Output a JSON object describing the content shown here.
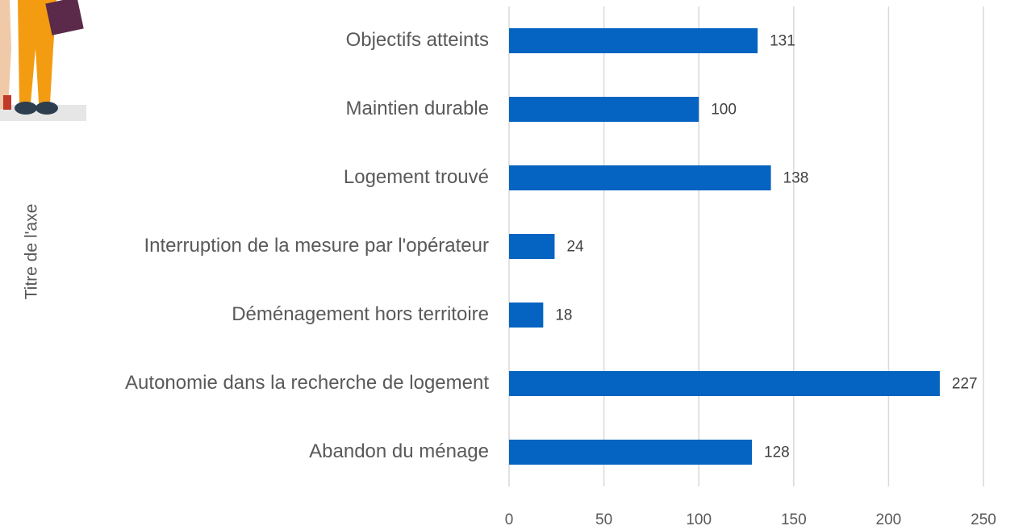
{
  "chart_data": {
    "type": "bar",
    "orientation": "horizontal",
    "axis_title": "Titre de l'axe",
    "categories": [
      "Objectifs atteints",
      "Maintien durable",
      "Logement trouvé",
      "Interruption de la mesure par l'opérateur",
      "Déménagement hors territoire",
      "Autonomie dans la recherche de logement",
      "Abandon du ménage"
    ],
    "values": [
      131,
      100,
      138,
      24,
      18,
      227,
      128
    ],
    "color": "#0563c1",
    "xlim": [
      0,
      250
    ],
    "xticks": [
      0,
      50,
      100,
      150,
      200,
      250
    ],
    "grid": true
  }
}
